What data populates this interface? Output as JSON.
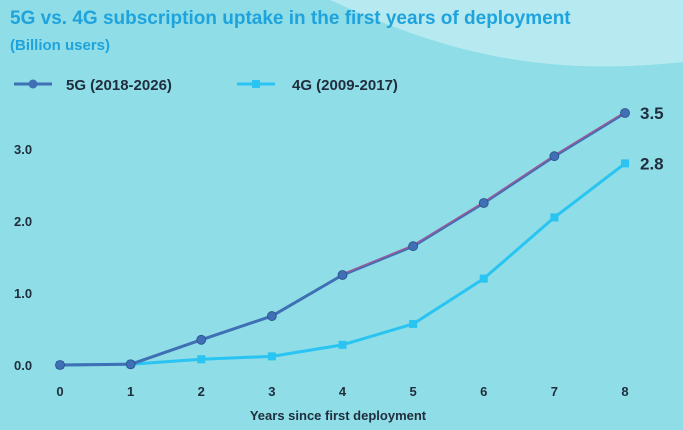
{
  "chart_data": {
    "type": "line",
    "title": "5G vs. 4G subscription uptake in the first years of deployment",
    "subtitle": "(Billion users)",
    "xlabel": "Years since first deployment",
    "ylabel": "",
    "x": [
      0,
      1,
      2,
      3,
      4,
      5,
      6,
      7,
      8
    ],
    "x_tick_labels": [
      "0",
      "1",
      "2",
      "3",
      "4",
      "5",
      "6",
      "7",
      "8"
    ],
    "y_tick_labels": [
      "0.0",
      "1.0",
      "2.0",
      "3.0"
    ],
    "ylim": [
      0,
      3.6
    ],
    "legend_position": "top-left",
    "grid": false,
    "series": [
      {
        "name": "5G (2018-2026)",
        "values": [
          0.0,
          0.01,
          0.35,
          0.68,
          1.25,
          1.65,
          2.25,
          2.9,
          3.5
        ],
        "color": "#3f6fb5",
        "end_label": "3.5"
      },
      {
        "name": "4G (2009-2017)",
        "values": [
          0.0,
          0.01,
          0.08,
          0.12,
          0.28,
          0.57,
          1.2,
          2.05,
          2.8
        ],
        "color": "#29c4f2",
        "end_label": "2.8"
      }
    ],
    "colors": {
      "title": "#1fa3dd",
      "background": "#8fdde6",
      "trend_overlay": "#c0508a"
    }
  }
}
